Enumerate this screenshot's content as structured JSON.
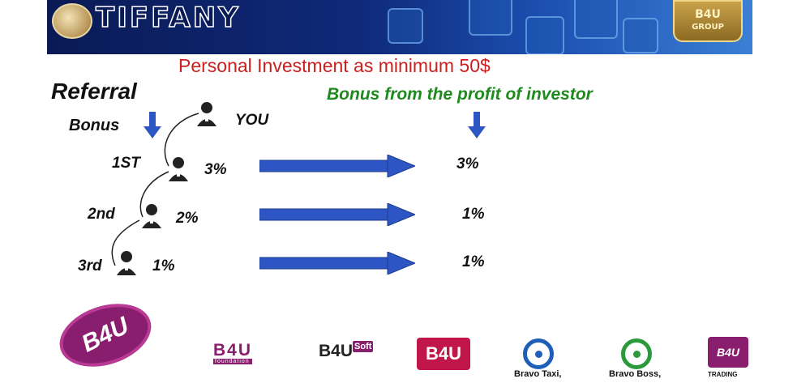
{
  "header": {
    "brand": "TIFFANY",
    "badge_top": "B4U",
    "badge_bottom": "GROUP"
  },
  "heading": "Personal Investment as minimum 50$",
  "referral_title": "Referral",
  "referral_sub": "Bonus",
  "profit_title": "Bonus from the profit of  investor",
  "you_label": "YOU",
  "levels": [
    {
      "name": "1ST",
      "referral_pct": "3%",
      "profit_pct": "3%"
    },
    {
      "name": "2nd",
      "referral_pct": "2%",
      "profit_pct": "1%"
    },
    {
      "name": "3rd",
      "referral_pct": "1%",
      "profit_pct": "1%"
    }
  ],
  "footer": {
    "main_logo": "B4U",
    "foundation": "B4U",
    "foundation_sub": "foundation",
    "soft_main": "B4U",
    "soft_tag": "Soft",
    "b4u_plus": "B4U",
    "bravo_taxi": "Bravo Taxi,",
    "bravo_boss": "Bravo Boss,",
    "trading": "TRADING",
    "trading_logo": "B4U"
  },
  "colors": {
    "heading": "#cc1f1f",
    "profit": "#1e8a1e",
    "arrow": "#2d56c4",
    "brand_purple": "#8a1e6e"
  }
}
